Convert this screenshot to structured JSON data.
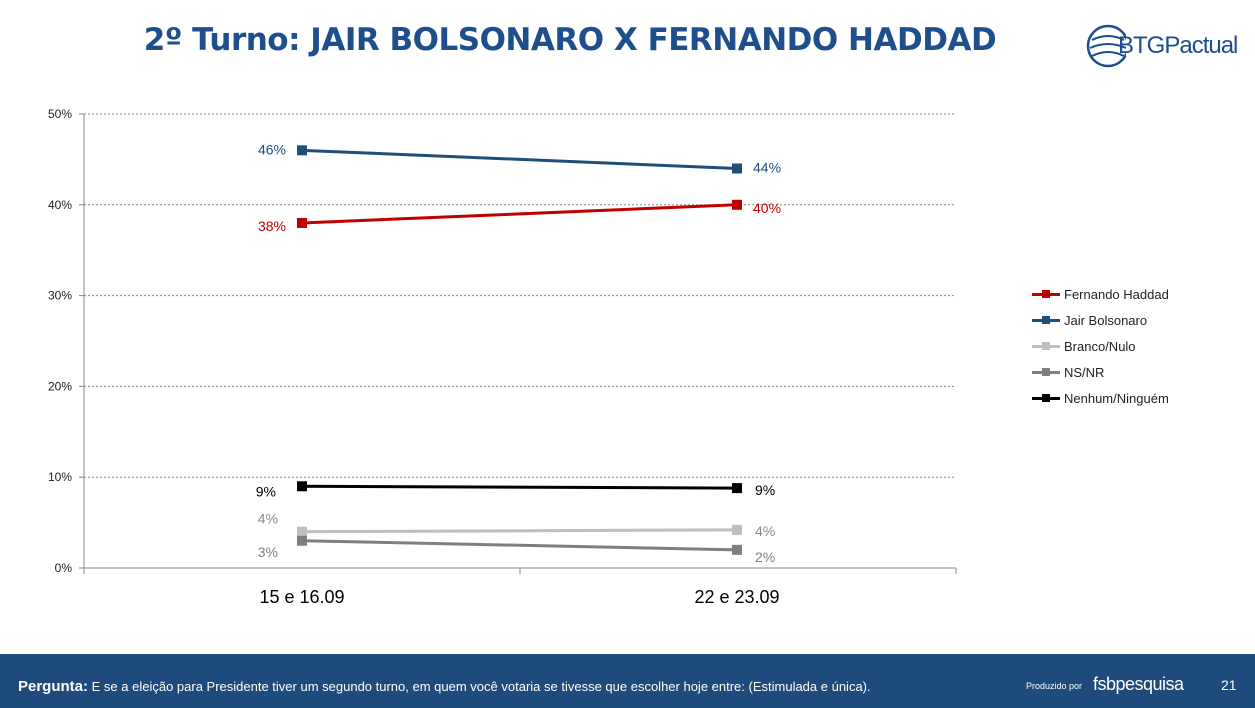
{
  "header": {
    "title": "2º Turno: JAIR BOLSONARO X FERNANDO HADDAD",
    "logo_text": "BTGPactual"
  },
  "chart_data": {
    "type": "line",
    "categories": [
      "15 e 16.09",
      "22 e 23.09"
    ],
    "ylim": [
      0,
      50
    ],
    "yticks": [
      0,
      10,
      20,
      30,
      40,
      50
    ],
    "ytick_labels": [
      "0%",
      "10%",
      "20%",
      "30%",
      "40%",
      "50%"
    ],
    "grid": true,
    "legend_position": "right",
    "series": [
      {
        "name": "Fernando Haddad",
        "color": "#c00000",
        "values": [
          38,
          40
        ],
        "labels": [
          "38%",
          "40%"
        ]
      },
      {
        "name": "Jair Bolsonaro",
        "color": "#1f4e79",
        "values": [
          46,
          44
        ],
        "labels": [
          "46%",
          "44%"
        ]
      },
      {
        "name": "Branco/Nulo",
        "color": "#bfbfbf",
        "values": [
          4,
          4.2
        ],
        "labels": [
          "4%",
          "4%"
        ]
      },
      {
        "name": "NS/NR",
        "color": "#7f7f7f",
        "values": [
          3,
          2
        ],
        "labels": [
          "3%",
          "2%"
        ]
      },
      {
        "name": "Nenhum/Ninguém",
        "color": "#000000",
        "values": [
          9,
          8.8
        ],
        "labels": [
          "9%",
          "9%"
        ]
      }
    ]
  },
  "footer": {
    "question_label": "Pergunta:",
    "question_text": "E se a eleição para Presidente tiver um segundo turno, em quem você votaria se tivesse que escolher hoje entre: (Estimulada e única).",
    "produced_by": "Produzido por",
    "brand": "fsbpesquisa",
    "page_number": "21"
  }
}
